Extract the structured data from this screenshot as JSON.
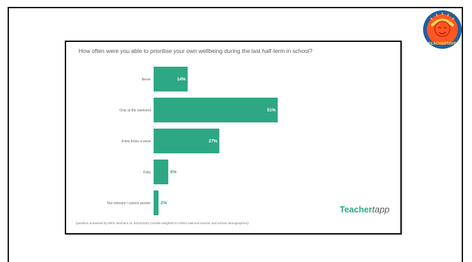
{
  "brand": {
    "part1": "Teacher",
    "part2": "tapp",
    "logo_text": "TEACHERTAPP",
    "primary_color": "#2ea884",
    "logo_ring_color": "#1f5fa3",
    "logo_fill_color": "#ff5722"
  },
  "footnote": "Question answered by 8001 teachers on 30/10/2022 (results weighted to reflect national teacher and school demographics)",
  "chart_data": {
    "type": "bar",
    "orientation": "horizontal",
    "title": "How often were you able to prioritise your own wellbeing during the last half-term in school?",
    "categories": [
      "Never",
      "Only at the weekend",
      "A few times a week",
      "Daily",
      "Not relevant / cannot answer"
    ],
    "values": [
      14,
      51,
      27,
      6,
      2
    ],
    "labels": [
      "14%",
      "51%",
      "27%",
      "6%",
      "2%"
    ],
    "xlim": [
      0,
      100
    ],
    "bar_color": "#2ea884",
    "grid": false,
    "legend": "none"
  }
}
